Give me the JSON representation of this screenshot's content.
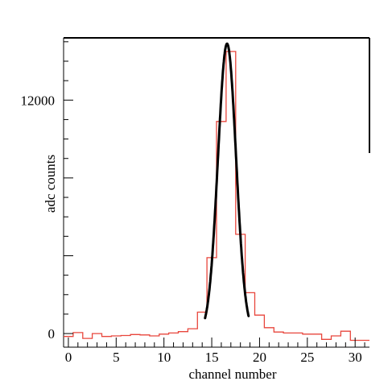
{
  "chart_data": {
    "type": "line",
    "title": "",
    "xlabel": "channel number",
    "ylabel": "adc counts",
    "xlim": [
      -0.5,
      31.5
    ],
    "ylim": [
      -700,
      15200
    ],
    "x_ticks": [
      0,
      5,
      10,
      15,
      20,
      25,
      30
    ],
    "y_tick_labels": [
      {
        "value": 0,
        "label": "0"
      },
      {
        "value": 12000,
        "label": "12000"
      }
    ],
    "y_minor_step": 1000,
    "y_major_step": 4000,
    "grid": false,
    "legend": "none",
    "series": [
      {
        "kind": "histogram",
        "color": "#e8463c",
        "bin_edges": [
          -0.5,
          0.5,
          1.5,
          2.5,
          3.5,
          4.5,
          5.5,
          6.5,
          7.5,
          8.5,
          9.5,
          10.5,
          11.5,
          12.5,
          13.5,
          14.5,
          15.5,
          16.5,
          17.5,
          18.5,
          19.5,
          20.5,
          21.5,
          22.5,
          23.5,
          24.5,
          25.5,
          26.5,
          27.5,
          28.5,
          29.5,
          30.5,
          31.5
        ],
        "values": [
          -150,
          50,
          -250,
          0,
          -150,
          -120,
          -100,
          -50,
          -70,
          -120,
          -30,
          30,
          100,
          250,
          1100,
          3900,
          10900,
          14500,
          5100,
          2100,
          950,
          300,
          80,
          30,
          30,
          -30,
          -30,
          -300,
          -120,
          120,
          -350,
          -350
        ]
      },
      {
        "kind": "fit",
        "model": "gaussian",
        "color": "#000000",
        "amplitude": 14900,
        "mean": 16.6,
        "sigma": 0.95,
        "x_range": [
          14.3,
          18.85
        ]
      }
    ]
  }
}
